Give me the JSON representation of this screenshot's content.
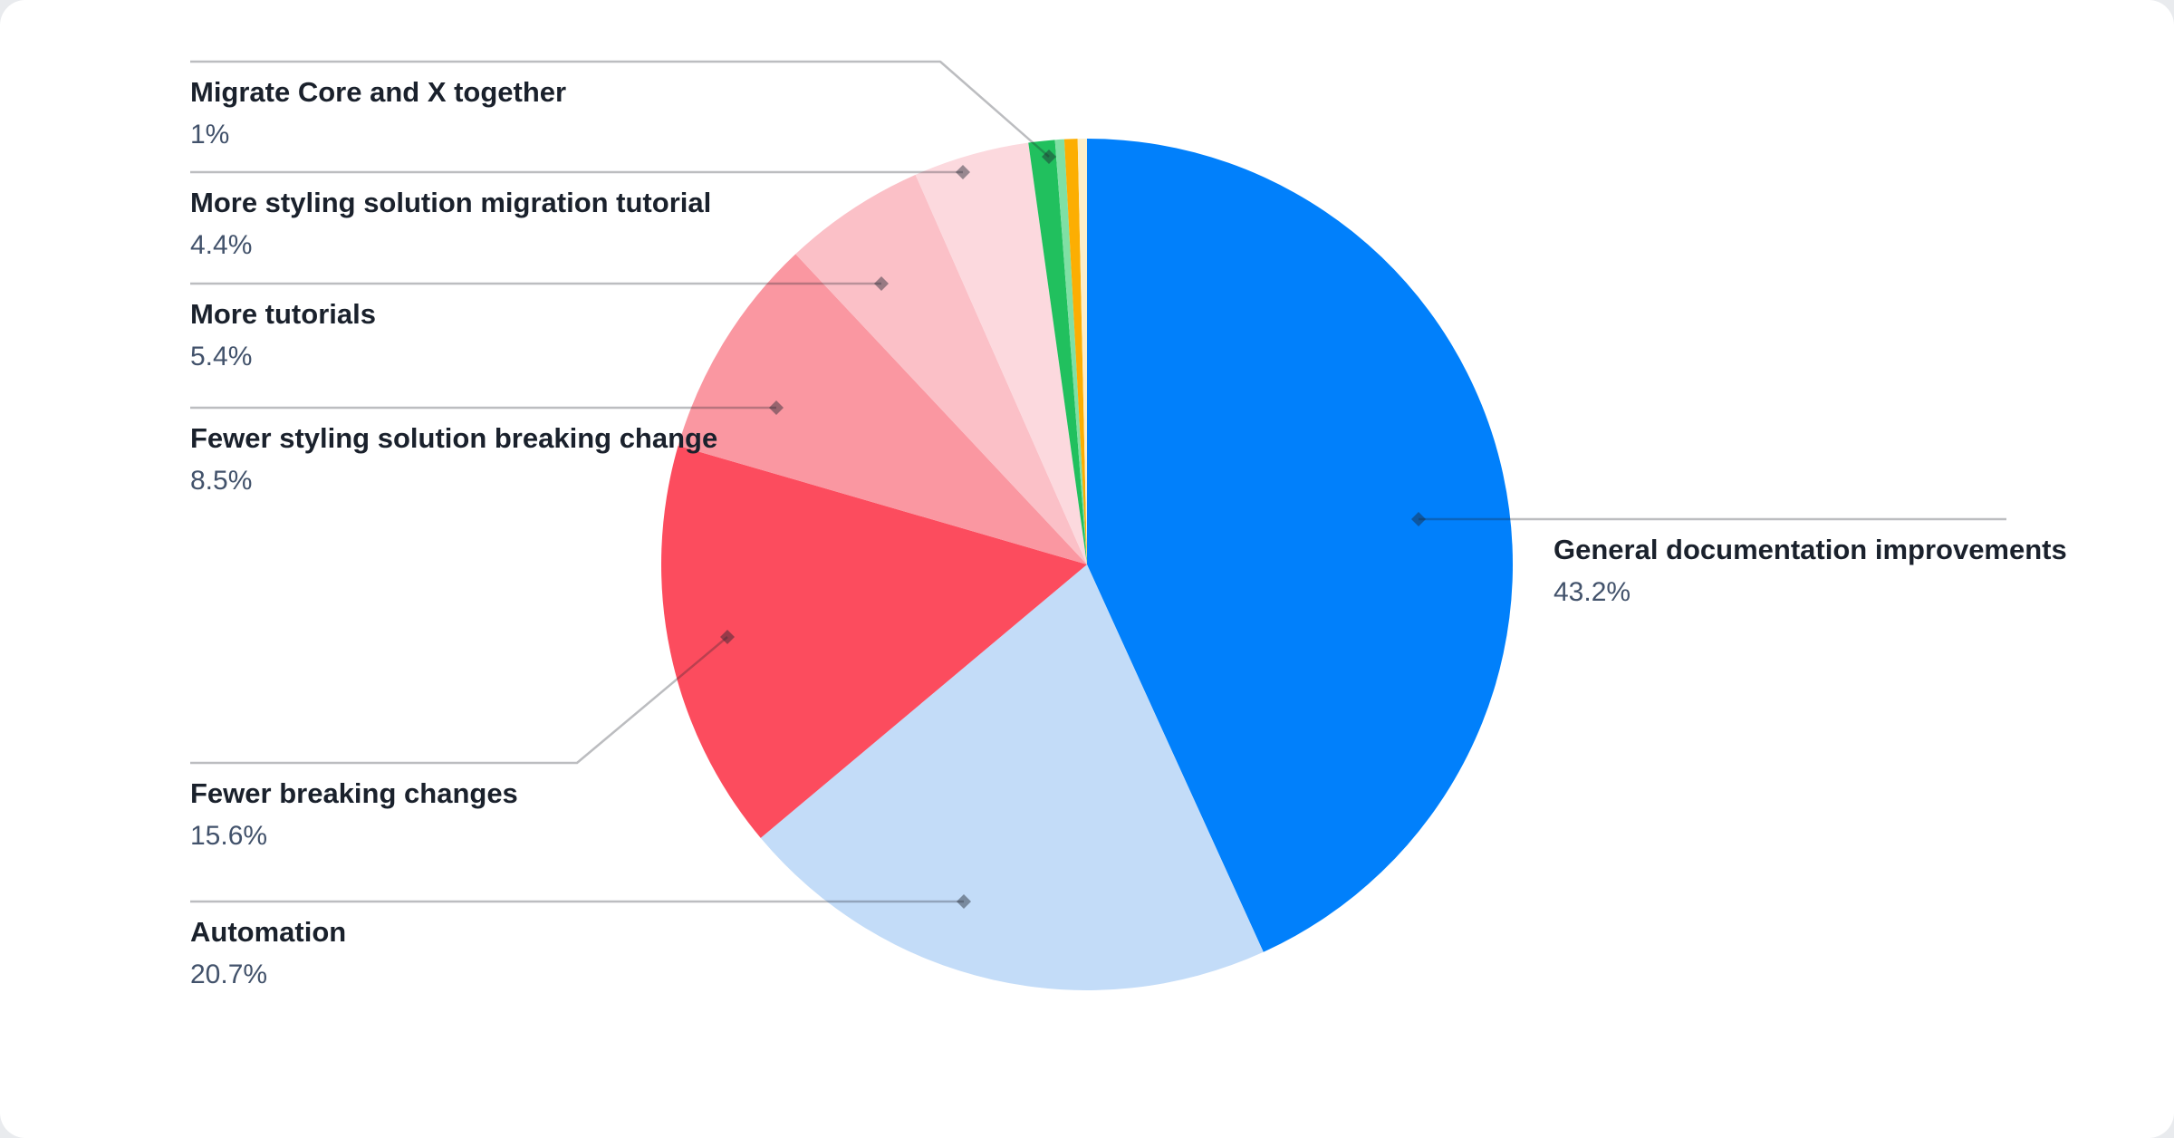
{
  "page": {
    "background": "#e9ebee",
    "card_background": "#ffffff"
  },
  "chart_data": {
    "type": "pie",
    "title": "",
    "legend_position": "callout-labels",
    "start_angle_deg": 0,
    "direction": "clockwise",
    "total_percent": 100,
    "slices": [
      {
        "id": "general-documentation-improvements",
        "label": "General documentation improvements",
        "percent_label": "43.2%",
        "value": 43.2,
        "color": "#0180fb",
        "callout_side": "right"
      },
      {
        "id": "automation",
        "label": "Automation",
        "percent_label": "20.7%",
        "value": 20.7,
        "color": "#c3dcf8",
        "callout_side": "left"
      },
      {
        "id": "fewer-breaking-changes",
        "label": "Fewer breaking changes",
        "percent_label": "15.6%",
        "value": 15.6,
        "color": "#fc4c5e",
        "callout_side": "left"
      },
      {
        "id": "fewer-styling-solution-breaking-change",
        "label": "Fewer styling solution breaking change",
        "percent_label": "8.5%",
        "value": 8.5,
        "color": "#fa97a1",
        "callout_side": "left"
      },
      {
        "id": "more-tutorials",
        "label": "More tutorials",
        "percent_label": "5.4%",
        "value": 5.4,
        "color": "#fbc0c7",
        "callout_side": "left"
      },
      {
        "id": "more-styling-solution-migration-tutorial",
        "label": "More styling solution migration tutorial",
        "percent_label": "4.4%",
        "value": 4.4,
        "color": "#fcd9de",
        "callout_side": "left"
      },
      {
        "id": "migrate-core-and-x-together",
        "label": "Migrate Core and X together",
        "percent_label": "1%",
        "value": 1,
        "color": "#21c05e",
        "callout_side": "left"
      },
      {
        "id": "unlabeled-small-1",
        "label": null,
        "percent_label": null,
        "value": 0.35,
        "color": "#7fe0a4",
        "callout_side": null
      },
      {
        "id": "unlabeled-small-2",
        "label": null,
        "percent_label": null,
        "value": 0.5,
        "color": "#fcae02",
        "callout_side": null
      },
      {
        "id": "unlabeled-small-3",
        "label": null,
        "percent_label": null,
        "value": 0.35,
        "color": "#fbeec9",
        "callout_side": null
      }
    ],
    "styles": {
      "label_color": "#1a212c",
      "percent_color": "#42526b",
      "leader_line_color": "rgba(32,38,48,0.30)",
      "marker_color": "rgba(32,38,48,0.45)"
    }
  }
}
